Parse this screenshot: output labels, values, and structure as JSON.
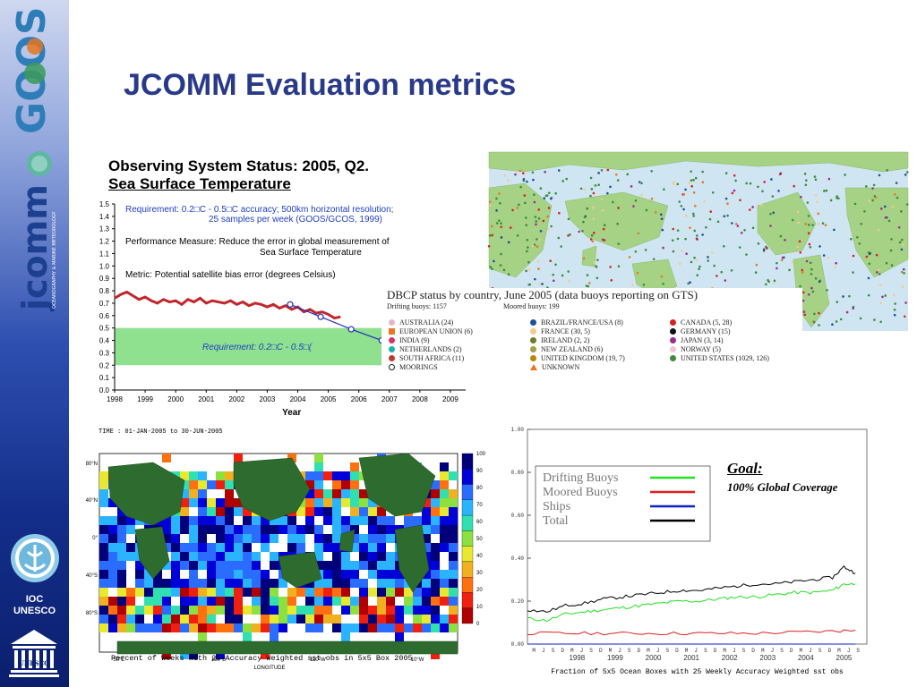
{
  "slide": {
    "title": "JCOMM Evaluation metrics"
  },
  "sidebar": {
    "goos_logo_text": "GOOS",
    "jcomm_logo_text": "jcomm",
    "jcomm_tagline": "OCEANOGRAPHY & MARINE METEOROLOGY",
    "ioc_text_line1": "IOC",
    "ioc_text_line2": "UNESCO",
    "unesco_text": "UNESCO"
  },
  "header": {
    "line1": "Observing System Status:  2005, Q2.",
    "line2": "Sea Surface Temperature"
  },
  "error_chart_text": {
    "requirement_lines": [
      "Requirement:  0.2□C - 0.5□C accuracy; 500km horizontal resolution;",
      "25 samples per week (GOOS/GCOS, 1999)"
    ],
    "performance_lines": [
      "Performance Measure:  Reduce the error in global measurement of",
      "Sea Surface Temperature"
    ],
    "metric_line": "Metric:  Potential satellite bias error (degrees Celsius)",
    "band_label": "Requirement:  0.2□C - 0.5□("
  },
  "dbcp": {
    "title": "DBCP status by country, June 2005 (data buoys reporting on GTS)",
    "drifting": "Drifting buoys: 1157",
    "moored": "Moored buoys: 199",
    "col1": [
      {
        "label": "AUSTRALIA (24)",
        "color": "#e8b4c8",
        "shape": "dot"
      },
      {
        "label": "EUROPEAN UNION (6)",
        "color": "#e87722",
        "shape": "sq"
      },
      {
        "label": "INDIA (9)",
        "color": "#d6336c",
        "shape": "dot"
      },
      {
        "label": "NETHERLANDS (2)",
        "color": "#20b2aa",
        "shape": "dot"
      },
      {
        "label": "SOUTH AFRICA (11)",
        "color": "#c0392b",
        "shape": "dot"
      },
      {
        "label": "MOORINGS",
        "color": "#222222",
        "shape": "ring"
      }
    ],
    "col2": [
      {
        "label": "BRAZIL/FRANCE/USA (8)",
        "color": "#1f4e9c",
        "shape": "dot"
      },
      {
        "label": "FRANCE (30, 5)",
        "color": "#f5c98a",
        "shape": "dot"
      },
      {
        "label": "IRELAND (2, 2)",
        "color": "#6b7d2a",
        "shape": "dot"
      },
      {
        "label": "NEW ZEALAND (6)",
        "color": "#a0a048",
        "shape": "dot"
      },
      {
        "label": "UNITED KINGDOM (19, 7)",
        "color": "#b8860b",
        "shape": "dot"
      },
      {
        "label": "UNKNOWN",
        "color": "#e87722",
        "shape": "tri"
      }
    ],
    "col3": [
      {
        "label": "CANADA (5, 28)",
        "color": "#d62020",
        "shape": "dot"
      },
      {
        "label": "GERMANY (15)",
        "color": "#111111",
        "shape": "dot"
      },
      {
        "label": "JAPAN (3, 14)",
        "color": "#9b2d8f",
        "shape": "dot"
      },
      {
        "label": "NORWAY (5)",
        "color": "#f2c6d8",
        "shape": "dot"
      },
      {
        "label": "UNITED STATES (1029, 126)",
        "color": "#3c8c3c",
        "shape": "dot"
      }
    ]
  },
  "grid_map_text": {
    "time_label": "TIME : 01-JAN-2005 to 30-JUN-2005",
    "lat_labels": [
      "80°N",
      "40°N",
      "0°",
      "40°S",
      "80°S"
    ],
    "lon_labels": [
      "50°E",
      "150°E",
      "110°W",
      "10°W"
    ],
    "x_title": "LONGITUDE",
    "caption": "Percent of Weeks with 25 Accuracy Weighted sst obs in 5x5 Box 2005",
    "colorbar_ticks": [
      "100",
      "90",
      "80",
      "70",
      "60",
      "50",
      "40",
      "30",
      "20",
      "10",
      "0"
    ],
    "colorbar_colors": [
      "#00007a",
      "#0000d8",
      "#2a6cff",
      "#2ab4ff",
      "#30e0b0",
      "#8ce040",
      "#e8e830",
      "#f0b020",
      "#ff7010",
      "#f02010",
      "#b00000"
    ]
  },
  "goal": {
    "title": "Goal:",
    "text": "100% Global Coverage"
  },
  "chart_data": [
    {
      "type": "line",
      "xlabel": "Year",
      "ylabel": "",
      "xlim": [
        1998,
        2009.5
      ],
      "ylim": [
        0,
        1.5
      ],
      "x_ticks": [
        "1998",
        "1999",
        "2000",
        "2001",
        "2002",
        "2003",
        "2004",
        "2005",
        "2006",
        "2007",
        "2008",
        "2009"
      ],
      "y_ticks": [
        "0.0",
        "0.1",
        "0.2",
        "0.3",
        "0.4",
        "0.5",
        "0.6",
        "0.7",
        "0.8",
        "0.9",
        "1.0",
        "1.1",
        "1.2",
        "1.3",
        "1.4",
        "1.5"
      ],
      "band": [
        0.2,
        0.5
      ],
      "series": [
        {
          "color": "#c0272d",
          "x": [
            1998.0,
            1998.2,
            1998.4,
            1998.6,
            1998.8,
            1999.0,
            1999.2,
            1999.4,
            1999.6,
            1999.8,
            2000.0,
            2000.2,
            2000.4,
            2000.6,
            2000.8,
            2001.0,
            2001.2,
            2001.4,
            2001.6,
            2001.8,
            2002.0,
            2002.2,
            2002.4,
            2002.6,
            2002.8,
            2003.0,
            2003.2,
            2003.4,
            2003.6,
            2003.8,
            2004.0,
            2004.2,
            2004.4,
            2004.6,
            2004.8,
            2005.0,
            2005.2,
            2005.4
          ],
          "y": [
            0.74,
            0.77,
            0.79,
            0.76,
            0.73,
            0.75,
            0.72,
            0.7,
            0.73,
            0.71,
            0.72,
            0.69,
            0.73,
            0.71,
            0.74,
            0.7,
            0.72,
            0.71,
            0.7,
            0.72,
            0.69,
            0.71,
            0.68,
            0.7,
            0.69,
            0.67,
            0.69,
            0.66,
            0.68,
            0.65,
            0.67,
            0.63,
            0.65,
            0.62,
            0.63,
            0.61,
            0.58,
            0.59
          ]
        },
        {
          "color": "#1f2fc0",
          "x": [
            2003.75,
            2004.75,
            2005.75,
            2006.75
          ],
          "y": [
            0.69,
            0.59,
            0.49,
            0.4
          ]
        }
      ]
    },
    {
      "type": "line",
      "title": "",
      "xlabel": "Fraction of 5x5 Ocean Boxes with 25 Weekly Accuracy Weighted sst obs",
      "ylabel": "",
      "xlim": [
        1997.0,
        2005.9
      ],
      "ylim": [
        0,
        1.0
      ],
      "y_ticks": [
        "0.00",
        "0.20",
        "0.40",
        "0.60",
        "0.80",
        "1.00"
      ],
      "month_ticks": [
        "M",
        "J",
        "S",
        "D",
        "M",
        "J",
        "S",
        "D",
        "M",
        "J",
        "S",
        "D",
        "M",
        "J",
        "S",
        "D",
        "M",
        "J",
        "S",
        "D",
        "M",
        "J",
        "S",
        "D",
        "M",
        "J",
        "S",
        "D",
        "M",
        "J",
        "S",
        "D",
        "M",
        "J",
        "S",
        "D"
      ],
      "year_ticks": [
        "1998",
        "1999",
        "2000",
        "2001",
        "2002",
        "2003",
        "2004",
        "2005"
      ],
      "legend": [
        "Drifting Buoys",
        "Moored Buoys",
        "Ships",
        "Total"
      ],
      "series": [
        {
          "name": "Drifting Buoys",
          "color": "#22e022",
          "x": [
            1997.0,
            1997.5,
            1998.0,
            1998.5,
            1999.0,
            1999.5,
            2000.0,
            2000.5,
            2001.0,
            2001.5,
            2002.0,
            2002.5,
            2003.0,
            2003.5,
            2004.0,
            2004.5,
            2005.0,
            2005.3,
            2005.6
          ],
          "y": [
            0.12,
            0.11,
            0.14,
            0.15,
            0.16,
            0.17,
            0.18,
            0.19,
            0.2,
            0.2,
            0.21,
            0.22,
            0.22,
            0.23,
            0.24,
            0.24,
            0.25,
            0.28,
            0.28
          ]
        },
        {
          "name": "Moored Buoys",
          "color": "#e02020",
          "x": [
            1997.0,
            1998.0,
            1999.0,
            2000.0,
            2001.0,
            2002.0,
            2003.0,
            2004.0,
            2005.0,
            2005.6
          ],
          "y": [
            0.05,
            0.05,
            0.05,
            0.05,
            0.05,
            0.05,
            0.05,
            0.055,
            0.06,
            0.065
          ]
        },
        {
          "name": "Ships",
          "color": "#1020c0",
          "x": [
            1997.0,
            2005.6
          ],
          "y": [
            0.0,
            0.0
          ]
        },
        {
          "name": "Total",
          "color": "#000000",
          "x": [
            1997.0,
            1997.5,
            1998.0,
            1998.5,
            1999.0,
            1999.5,
            2000.0,
            2000.5,
            2001.0,
            2001.5,
            2002.0,
            2002.5,
            2003.0,
            2003.5,
            2004.0,
            2004.5,
            2005.0,
            2005.3,
            2005.6
          ],
          "y": [
            0.16,
            0.15,
            0.18,
            0.19,
            0.21,
            0.22,
            0.23,
            0.24,
            0.25,
            0.25,
            0.26,
            0.27,
            0.28,
            0.28,
            0.29,
            0.3,
            0.31,
            0.36,
            0.33
          ]
        }
      ]
    }
  ]
}
